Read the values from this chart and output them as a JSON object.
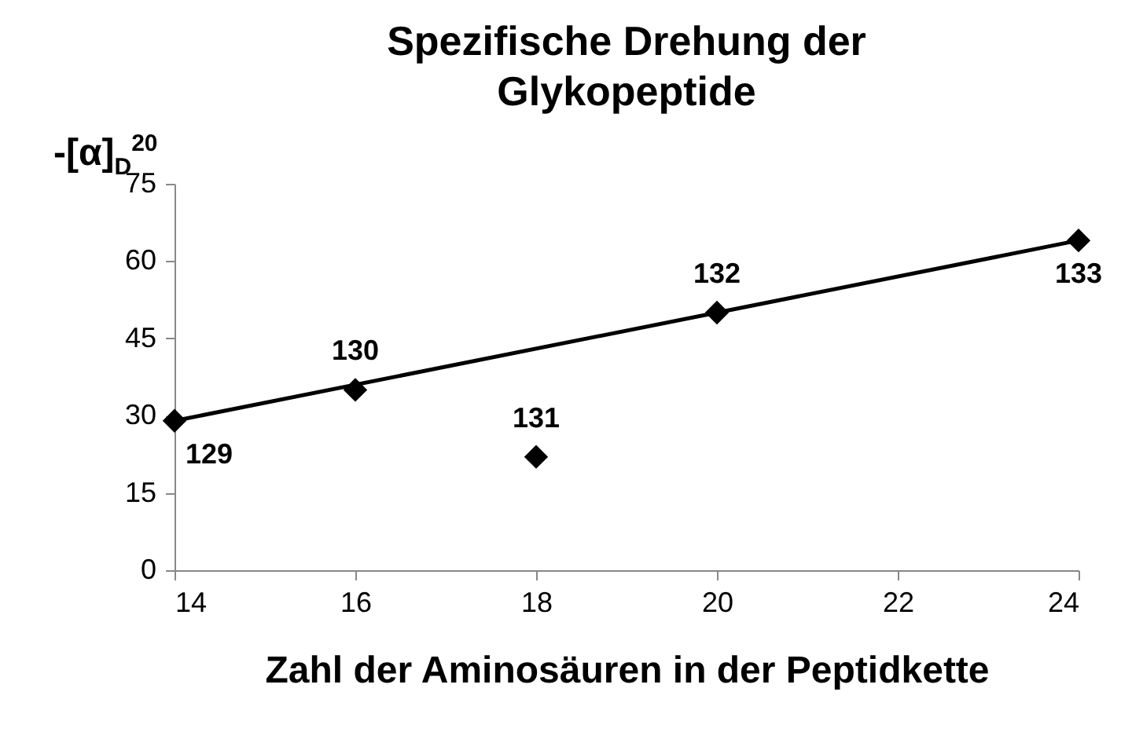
{
  "chart_data": {
    "type": "scatter",
    "title": "Spezifische Drehung der Glykopeptide",
    "xlabel": "Zahl der Aminosäuren in der Peptidkette",
    "ylabel": "-[α]$_{D}$$^{20}$",
    "xlim": [
      14,
      24
    ],
    "xticks": [
      14,
      16,
      18,
      20,
      22,
      24
    ],
    "ylim": [
      0,
      75
    ],
    "yticks": [
      0,
      15,
      30,
      45,
      60,
      75
    ],
    "grid": false,
    "series": [
      {
        "color": "#000000",
        "marker": "diamond",
        "x": [
          14,
          16,
          18,
          20,
          24
        ],
        "values": [
          29,
          35,
          22,
          50,
          64
        ]
      },
      {
        "type": "line",
        "color": "#000000",
        "x": [
          14,
          24
        ],
        "values": [
          29,
          64
        ],
        "line_style": "solid"
      }
    ],
    "annotations": [
      {
        "text": "129",
        "x": 14,
        "y": 29
      },
      {
        "text": "130",
        "x": 16,
        "y": 35
      },
      {
        "text": "131",
        "x": 18,
        "y": 22
      },
      {
        "text": "132",
        "x": 20,
        "y": 50
      },
      {
        "text": "133",
        "x": 24,
        "y": 64
      }
    ]
  }
}
